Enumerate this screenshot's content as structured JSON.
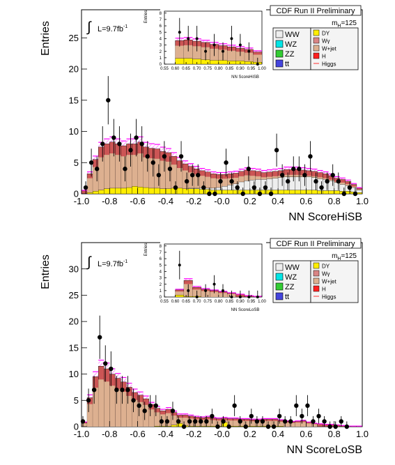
{
  "colors": {
    "signal_fill": "#cc5555",
    "wjet_fill": "#ddb090",
    "wgamma_fill": "#d98585",
    "dy_fill": "#ffee00",
    "ww_fill": "#eeeeee",
    "wz_fill": "#00e5e5",
    "zz_fill": "#33cc33",
    "tt_fill": "#4444dd",
    "h_fill": "#ff2020",
    "higgs_line": "#ff00ff",
    "hatch": "#ff66ff",
    "data_marker": "#000000"
  },
  "chart_data": [
    {
      "type": "histogram",
      "title": "CDF Run II Preliminary",
      "xlabel": "NN ScoreHiSB",
      "ylabel": "Entries",
      "lumi_label": "L=9.7fb",
      "lumi_sup": "-1",
      "mass_label": "m",
      "mass_sub": "H",
      "mass_value": "=125",
      "xlim": [
        -1.0,
        1.0
      ],
      "ylim": [
        0,
        29.5
      ],
      "x_ticks": [
        "-1.0",
        "-0.8",
        "-0.6",
        "-0.4",
        "-0.2",
        "-0.0",
        "0.2",
        "0.4",
        "0.6",
        "0.8",
        "1.0"
      ],
      "x_tick_values": [
        -1.0,
        -0.8,
        -0.6,
        -0.4,
        -0.2,
        0.0,
        0.2,
        0.4,
        0.6,
        0.8,
        1.0
      ],
      "y_ticks": [
        "0",
        "5",
        "10",
        "15",
        "20",
        "25"
      ],
      "y_tick_values": [
        0,
        5,
        10,
        15,
        20,
        25
      ],
      "legend_left": [
        "WW",
        "WZ",
        "ZZ",
        "tt"
      ],
      "legend_right": [
        "DY",
        "Wγ",
        "W+jet",
        "H",
        "Higgs"
      ],
      "bin_edges": [
        -1.0,
        -0.96,
        -0.92,
        -0.88,
        -0.84,
        -0.8,
        -0.76,
        -0.72,
        -0.68,
        -0.64,
        -0.6,
        -0.56,
        -0.52,
        -0.48,
        -0.44,
        -0.4,
        -0.36,
        -0.32,
        -0.28,
        -0.24,
        -0.2,
        -0.16,
        -0.12,
        -0.08,
        -0.04,
        0.0,
        0.04,
        0.08,
        0.12,
        0.16,
        0.2,
        0.24,
        0.28,
        0.32,
        0.36,
        0.4,
        0.44,
        0.48,
        0.52,
        0.56,
        0.6,
        0.64,
        0.68,
        0.72,
        0.76,
        0.8,
        0.84,
        0.88,
        0.92,
        0.96,
        1.0
      ],
      "stack_total": [
        0.5,
        3.2,
        5.5,
        7.5,
        8.0,
        8.3,
        8.0,
        7.7,
        8.0,
        8.0,
        8.3,
        7.5,
        7.3,
        7.2,
        6.8,
        6.6,
        6.0,
        5.3,
        4.8,
        4.4,
        4.0,
        3.7,
        3.5,
        3.2,
        3.1,
        3.1,
        3.2,
        3.3,
        3.6,
        3.8,
        3.7,
        3.6,
        3.4,
        3.5,
        3.6,
        3.7,
        3.9,
        3.9,
        3.9,
        3.8,
        3.7,
        3.6,
        3.4,
        3.2,
        2.9,
        2.5,
        2.3,
        2.0,
        1.5,
        0.9
      ],
      "dy_band": [
        0.0,
        0.2,
        0.4,
        0.6,
        0.8,
        0.9,
        0.9,
        0.9,
        1.0,
        1.2,
        1.1,
        1.0,
        0.9,
        0.9,
        0.8,
        0.8,
        0.9,
        0.9,
        0.8,
        0.8,
        0.8,
        0.7,
        0.7,
        0.6,
        0.6,
        0.6,
        0.6,
        0.6,
        0.6,
        0.6,
        0.6,
        0.6,
        0.6,
        0.6,
        0.6,
        0.6,
        0.6,
        0.6,
        0.6,
        0.6,
        0.6,
        0.6,
        0.5,
        0.5,
        0.5,
        0.5,
        0.4,
        0.4,
        0.3,
        0.2
      ],
      "ww_band": [
        0,
        0,
        0,
        0,
        0,
        0,
        0,
        0,
        0,
        0,
        0,
        0,
        0,
        0,
        0,
        0,
        0,
        0,
        0,
        0.1,
        0.1,
        0.2,
        0.2,
        0.3,
        0.4,
        0.6,
        0.8,
        1.0,
        1.3,
        1.5,
        1.6,
        1.7,
        1.7,
        1.8,
        1.9,
        2.0,
        2.1,
        2.1,
        2.1,
        2.1,
        2.1,
        2.0,
        1.9,
        1.8,
        1.6,
        1.3,
        1.1,
        0.9,
        0.7,
        0.4
      ],
      "data_x": [
        -0.97,
        -0.93,
        -0.89,
        -0.85,
        -0.81,
        -0.77,
        -0.73,
        -0.69,
        -0.65,
        -0.61,
        -0.57,
        -0.53,
        -0.49,
        -0.45,
        -0.41,
        -0.37,
        -0.33,
        -0.29,
        -0.25,
        -0.21,
        -0.17,
        -0.13,
        -0.09,
        -0.05,
        -0.01,
        0.03,
        0.07,
        0.11,
        0.15,
        0.19,
        0.23,
        0.27,
        0.31,
        0.35,
        0.39,
        0.43,
        0.47,
        0.51,
        0.55,
        0.59,
        0.63,
        0.67,
        0.71,
        0.75,
        0.79,
        0.83,
        0.87,
        0.91,
        0.95
      ],
      "data_y": [
        1,
        5,
        4,
        8,
        15,
        9,
        8,
        4,
        7,
        9,
        8,
        6,
        5,
        3,
        6,
        4,
        1,
        6,
        2,
        3,
        3,
        1,
        0,
        0,
        2,
        5,
        2,
        1,
        0,
        4,
        1,
        0,
        1,
        0,
        7,
        3,
        2,
        4,
        4,
        3,
        6,
        2,
        1,
        2,
        3,
        2,
        0,
        1,
        0
      ]
    },
    {
      "type": "histogram",
      "title": "CDF Run II Preliminary",
      "xlabel": "NN ScoreLoSB",
      "ylabel": "Entries",
      "lumi_label": "L=9.7fb",
      "lumi_sup": "-1",
      "mass_label": "m",
      "mass_sub": "H",
      "mass_value": "=125",
      "xlim": [
        -1.0,
        1.0
      ],
      "ylim": [
        0,
        35
      ],
      "x_ticks": [
        "-1.0",
        "-0.8",
        "-0.6",
        "-0.4",
        "-0.2",
        "-0.0",
        "0.2",
        "0.4",
        "0.6",
        "0.8",
        "1.0"
      ],
      "x_tick_values": [
        -1.0,
        -0.8,
        -0.6,
        -0.4,
        -0.2,
        0.0,
        0.2,
        0.4,
        0.6,
        0.8,
        1.0
      ],
      "y_ticks": [
        "0",
        "5",
        "10",
        "15",
        "20",
        "25",
        "30"
      ],
      "y_tick_values": [
        0,
        5,
        10,
        15,
        20,
        25,
        30
      ],
      "legend_left": [
        "WW",
        "WZ",
        "ZZ",
        "tt"
      ],
      "legend_right": [
        "DY",
        "Wγ",
        "W+jet",
        "H",
        "Higgs"
      ],
      "bin_edges": [
        -1.0,
        -0.96,
        -0.92,
        -0.88,
        -0.84,
        -0.8,
        -0.76,
        -0.72,
        -0.68,
        -0.64,
        -0.6,
        -0.56,
        -0.52,
        -0.48,
        -0.44,
        -0.4,
        -0.36,
        -0.32,
        -0.28,
        -0.24,
        -0.2,
        -0.16,
        -0.12,
        -0.08,
        -0.04,
        0.0,
        0.04,
        0.08,
        0.12,
        0.16,
        0.2,
        0.24,
        0.28,
        0.32,
        0.36,
        0.4,
        0.44,
        0.48,
        0.52,
        0.56,
        0.6,
        0.64,
        0.68,
        0.72,
        0.76,
        0.8,
        0.84,
        0.88,
        0.92,
        0.96,
        1.0
      ],
      "stack_total": [
        0.8,
        5.5,
        9.5,
        11.5,
        11.0,
        10.0,
        9.2,
        8.5,
        7.5,
        6.5,
        6.0,
        5.3,
        4.2,
        3.5,
        3.0,
        3.3,
        2.7,
        2.2,
        2.2,
        2.0,
        1.8,
        1.7,
        1.8,
        1.6,
        1.5,
        1.6,
        1.5,
        1.5,
        1.4,
        1.4,
        1.3,
        1.3,
        1.4,
        1.4,
        1.4,
        1.2,
        1.0,
        0.9,
        1.0,
        1.1,
        0.8,
        0.6,
        0.5,
        0.4,
        0.4,
        0.3,
        0.2,
        0.1,
        0.1,
        0.1
      ],
      "dy_band": [
        0,
        0,
        0,
        0,
        0,
        0,
        0,
        0,
        0,
        0,
        0,
        0,
        0,
        0.1,
        0.1,
        0.1,
        0.3,
        0.6,
        0.2,
        0.1,
        0.1,
        0.1,
        0.1,
        0.1,
        0.1,
        0.8,
        0.1,
        0.1,
        0.1,
        0.1,
        0.1,
        0.1,
        0.1,
        0.1,
        0.1,
        0.1,
        0,
        0,
        0,
        0,
        0,
        0,
        0,
        0,
        0,
        0,
        0,
        0,
        0,
        0
      ],
      "ww_band": [
        0,
        0,
        0,
        0,
        0,
        0,
        0,
        0,
        0,
        0,
        0,
        0,
        0,
        0,
        0,
        0,
        0,
        0,
        0,
        0,
        0,
        0,
        0,
        0,
        0,
        0,
        0,
        0,
        0,
        0,
        0,
        0,
        0,
        0,
        0,
        0,
        0,
        0,
        0,
        0,
        0,
        0,
        0,
        0,
        0,
        0,
        0,
        0,
        0,
        0
      ],
      "data_x": [
        -0.99,
        -0.95,
        -0.91,
        -0.87,
        -0.83,
        -0.79,
        -0.75,
        -0.71,
        -0.67,
        -0.63,
        -0.59,
        -0.55,
        -0.51,
        -0.47,
        -0.43,
        -0.39,
        -0.35,
        -0.31,
        -0.27,
        -0.23,
        -0.19,
        -0.15,
        -0.11,
        -0.07,
        -0.03,
        0.01,
        0.05,
        0.09,
        0.13,
        0.17,
        0.21,
        0.25,
        0.29,
        0.33,
        0.37,
        0.41,
        0.45,
        0.49,
        0.53,
        0.57,
        0.61,
        0.65,
        0.69,
        0.73,
        0.77,
        0.81,
        0.85,
        0.89
      ],
      "data_y": [
        1,
        5,
        7,
        17,
        12,
        11,
        7,
        7,
        7,
        5,
        4,
        3,
        4,
        4,
        1,
        1,
        3,
        1,
        0,
        1,
        1,
        1,
        1,
        2,
        0,
        1,
        0,
        4,
        1,
        0,
        2,
        1,
        1,
        0,
        0,
        2,
        1,
        1,
        4,
        2,
        4,
        1,
        2,
        1,
        0,
        0,
        1,
        0
      ]
    }
  ],
  "insets": [
    {
      "ylabel": "Entries",
      "xlabel": "NN ScoreHiSB",
      "x_ticks": [
        "0.55",
        "0.60",
        "0.65",
        "0.70",
        "0.75",
        "0.80",
        "0.85",
        "0.90",
        "0.95",
        "1.00"
      ],
      "x_tick_values": [
        0.55,
        0.6,
        0.65,
        0.7,
        0.75,
        0.8,
        0.85,
        0.9,
        0.95,
        1.0
      ],
      "y_ticks": [
        "0",
        "1",
        "2",
        "3",
        "4",
        "5",
        "6",
        "7",
        "8"
      ],
      "y_tick_values": [
        0,
        1,
        2,
        3,
        4,
        5,
        6,
        7,
        8
      ],
      "xlim": [
        0.55,
        1.0
      ],
      "ylim": [
        0,
        8.3
      ],
      "bin_edges": [
        0.6,
        0.64,
        0.68,
        0.72,
        0.76,
        0.8,
        0.84,
        0.88,
        0.92,
        0.96,
        1.0
      ],
      "stack_total": [
        3.7,
        3.8,
        3.6,
        3.4,
        3.1,
        2.9,
        2.7,
        2.5,
        2.3,
        1.9
      ],
      "dy_band": [
        0.9,
        0.9,
        0.8,
        0.7,
        0.6,
        0.6,
        0.5,
        0.5,
        0.4,
        0.3
      ],
      "data_x": [
        0.62,
        0.66,
        0.7,
        0.74,
        0.78,
        0.82,
        0.86,
        0.9,
        0.94,
        0.98
      ],
      "data_y": [
        5,
        4,
        4,
        2,
        3,
        2,
        4,
        3,
        2,
        0
      ]
    },
    {
      "ylabel": "Entries",
      "xlabel": "NN ScoreLoSB",
      "x_ticks": [
        "0.55",
        "0.60",
        "0.65",
        "0.70",
        "0.75",
        "0.80",
        "0.85",
        "0.90",
        "0.95",
        "1.00"
      ],
      "x_tick_values": [
        0.55,
        0.6,
        0.65,
        0.7,
        0.75,
        0.8,
        0.85,
        0.9,
        0.95,
        1.0
      ],
      "y_ticks": [
        "0",
        "1",
        "2",
        "3",
        "4",
        "5",
        "6",
        "7",
        "8"
      ],
      "y_tick_values": [
        0,
        1,
        2,
        3,
        4,
        5,
        6,
        7,
        8
      ],
      "xlim": [
        0.55,
        1.0
      ],
      "ylim": [
        0,
        8.3
      ],
      "bin_edges": [
        0.6,
        0.64,
        0.68,
        0.72,
        0.76,
        0.8,
        0.84,
        0.88,
        0.92,
        0.96,
        1.0
      ],
      "stack_total": [
        1.1,
        2.6,
        1.5,
        1.2,
        1.0,
        0.8,
        0.6,
        0.4,
        0.2,
        0.1
      ],
      "dy_band": [
        0.3,
        0.1,
        0.1,
        0,
        0,
        0,
        0,
        0,
        0,
        0
      ],
      "data_x": [
        0.62,
        0.66,
        0.7,
        0.74,
        0.78,
        0.82,
        0.86,
        0.9,
        0.94,
        0.98
      ],
      "data_y": [
        5,
        1,
        0,
        1,
        2,
        1,
        0,
        0,
        0,
        0
      ]
    }
  ]
}
